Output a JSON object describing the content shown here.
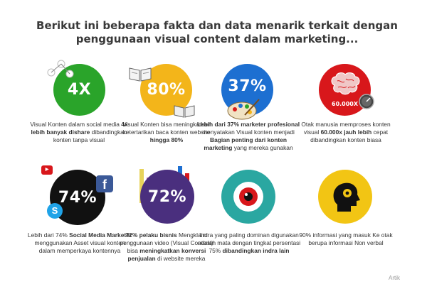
{
  "title_line1": "Berikut ini beberapa fakta dan data menarik terkait dengan",
  "title_line2": "penggunaan visual content dalam marketing...",
  "colors": {
    "green": "#2aa42a",
    "yellow": "#f3b51a",
    "blue": "#1d6fd1",
    "red": "#d8171b",
    "black": "#111111",
    "purple": "#4a2f7e",
    "teal": "#2aa7a1",
    "yellow2": "#f2c514"
  },
  "tiles": [
    {
      "stat": "4X",
      "caption": [
        {
          "t": "Visual Konten dalam social media ",
          "b": false
        },
        {
          "t": "4x lebih banyak dishare",
          "b": true
        },
        {
          "t": " dibandingkan konten tanpa visual",
          "b": false
        }
      ]
    },
    {
      "stat": "80%",
      "caption": [
        {
          "t": "Visual Konten bisa meningkatkan ketertarikan baca konten website ",
          "b": false
        },
        {
          "t": "hingga 80%",
          "b": true
        }
      ]
    },
    {
      "stat": "37%",
      "caption": [
        {
          "t": "Lebih dari 37% marketer profesional",
          "b": true
        },
        {
          "t": " menyatakan Visual konten menjadi ",
          "b": false
        },
        {
          "t": "Bagian penting dari konten marketing",
          "b": true
        },
        {
          "t": " yang mereka gunakan",
          "b": false
        }
      ]
    },
    {
      "stat": "60.000X",
      "caption": [
        {
          "t": "Otak manusia memproses konten visual ",
          "b": false
        },
        {
          "t": "60.000x jauh lebih",
          "b": true
        },
        {
          "t": " cepat dibandingkan konten biasa",
          "b": false
        }
      ]
    },
    {
      "stat": "74%",
      "caption": [
        {
          "t": "Lebih dari 74% ",
          "b": false
        },
        {
          "t": "Social Media Marketer",
          "b": true
        },
        {
          "t": " menggunakan Asset visual konten dalam memperkaya kontennya",
          "b": false
        }
      ]
    },
    {
      "stat": "72%",
      "caption": [
        {
          "t": "72% pelaku bisnis",
          "b": true
        },
        {
          "t": " Mengklaim penggunaan video (Visual Content) bisa ",
          "b": false
        },
        {
          "t": "meningkatkan konversi penjualan",
          "b": true
        },
        {
          "t": " di website mereka",
          "b": false
        }
      ]
    },
    {
      "stat": "",
      "caption": [
        {
          "t": "Indra yang paling dominan digunakan adalah mata dengan tingkat persentasi 75% ",
          "b": false
        },
        {
          "t": "dibandingkan indra lain",
          "b": true
        }
      ]
    },
    {
      "stat": "",
      "caption": [
        {
          "t": "90% informasi yang masuk Ke otak berupa informasi Non verbal",
          "b": false
        }
      ]
    }
  ],
  "watermark": "Artik"
}
